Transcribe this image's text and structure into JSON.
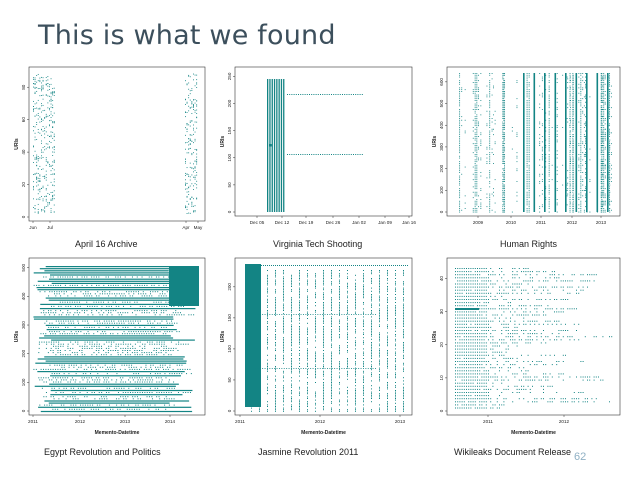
{
  "slide": {
    "title": "This is what we found",
    "page_number": "62"
  },
  "colors": {
    "mark": "#138484",
    "axis": "#333333"
  },
  "chart_data": [
    {
      "type": "scatter",
      "caption": "April 16 Archive",
      "xlabel": "",
      "ylabel": "URIs",
      "xticks": [
        "Jun",
        "Jul",
        "Apr",
        "May"
      ],
      "yticks": [
        "0",
        "20",
        "40",
        "60",
        "80"
      ],
      "ylim": [
        0,
        90
      ]
    },
    {
      "type": "scatter",
      "caption": "Virginia Tech Shooting",
      "xlabel": "",
      "ylabel": "URIs",
      "xticks": [
        "Dec 05",
        "Dec 12",
        "Dec 19",
        "Dec 26",
        "Jan 02",
        "Jan 09",
        "Jan 16"
      ],
      "yticks": [
        "0",
        "50",
        "100",
        "150",
        "200",
        "250"
      ],
      "ylim": [
        0,
        260
      ]
    },
    {
      "type": "scatter",
      "caption": "Human Rights",
      "xlabel": "",
      "ylabel": "URIs",
      "xticks": [
        "2009",
        "2010",
        "2011",
        "2012",
        "2013"
      ],
      "yticks": [
        "0",
        "100",
        "200",
        "300",
        "400",
        "500",
        "600"
      ],
      "ylim": [
        0,
        650
      ]
    },
    {
      "type": "scatter",
      "caption": "Egypt Revolution and Politics",
      "xlabel": "Memento-Datetime",
      "ylabel": "URIs",
      "xticks": [
        "2011",
        "2012",
        "2013",
        "2014"
      ],
      "yticks": [
        "0",
        "100",
        "200",
        "300",
        "400",
        "500"
      ],
      "ylim": [
        0,
        520
      ]
    },
    {
      "type": "scatter",
      "caption": "Jasmine Revolution 2011",
      "xlabel": "Memento-Datetime",
      "ylabel": "URIs",
      "xticks": [
        "2011",
        "2012",
        "2013"
      ],
      "yticks": [
        "0",
        "50",
        "100",
        "150",
        "200"
      ],
      "ylim": [
        0,
        240
      ]
    },
    {
      "type": "scatter",
      "caption": "Wikileaks Document Release",
      "xlabel": "Memento-Datetime",
      "ylabel": "URIs",
      "xticks": [
        "2011",
        "2012"
      ],
      "yticks": [
        "0",
        "10",
        "20",
        "30",
        "40"
      ],
      "ylim": [
        0,
        45
      ]
    }
  ]
}
